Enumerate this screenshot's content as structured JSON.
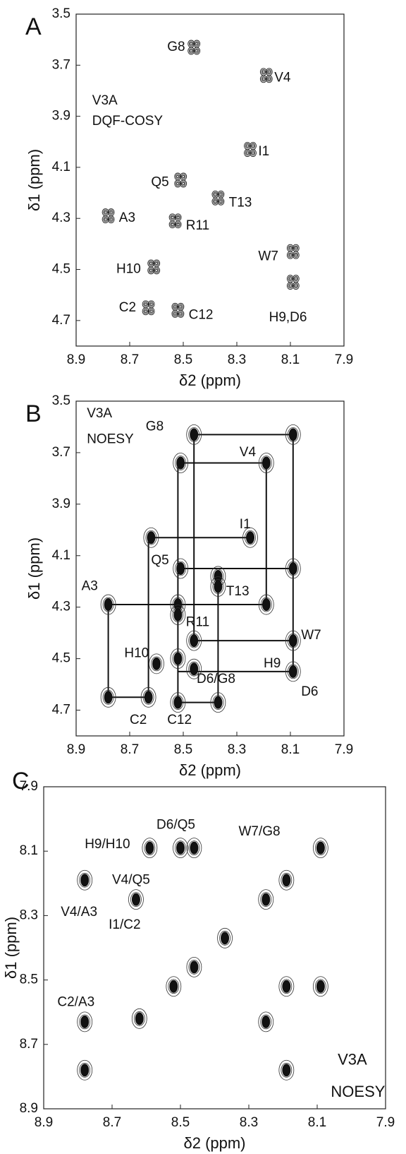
{
  "chart_data": [
    {
      "type": "scatter",
      "panel": "A",
      "xlabel": "δ2 (ppm)",
      "ylabel": "δ1 (ppm)",
      "xlim": [
        8.9,
        7.9
      ],
      "ylim": [
        3.5,
        4.8
      ],
      "xticks": [
        8.9,
        8.7,
        8.5,
        8.3,
        8.1,
        7.9
      ],
      "yticks": [
        3.5,
        3.7,
        3.9,
        4.1,
        4.3,
        4.5,
        4.7
      ],
      "x": [
        8.46,
        8.19,
        8.25,
        8.51,
        8.37,
        8.78,
        8.53,
        8.09,
        8.61,
        8.09,
        8.63,
        8.52
      ],
      "y": [
        3.63,
        3.74,
        4.03,
        4.15,
        4.22,
        4.29,
        4.31,
        4.43,
        4.49,
        4.55,
        4.65,
        4.66
      ],
      "annotations": [
        {
          "text": "V3A",
          "x": 8.84,
          "y": 3.84
        },
        {
          "text": "DQF-COSY",
          "x": 8.84,
          "y": 3.92
        },
        {
          "text": "G8",
          "x": 8.56,
          "y": 3.63
        },
        {
          "text": "V4",
          "x": 8.16,
          "y": 3.75
        },
        {
          "text": "I1",
          "x": 8.22,
          "y": 4.04
        },
        {
          "text": "Q5",
          "x": 8.62,
          "y": 4.16
        },
        {
          "text": "T13",
          "x": 8.33,
          "y": 4.24
        },
        {
          "text": "A3",
          "x": 8.74,
          "y": 4.3
        },
        {
          "text": "R11",
          "x": 8.49,
          "y": 4.33
        },
        {
          "text": "W7",
          "x": 8.22,
          "y": 4.45
        },
        {
          "text": "H10",
          "x": 8.75,
          "y": 4.5
        },
        {
          "text": "H9,D6",
          "x": 8.18,
          "y": 4.69
        },
        {
          "text": "C2",
          "x": 8.74,
          "y": 4.65
        },
        {
          "text": "C12",
          "x": 8.48,
          "y": 4.68
        }
      ]
    },
    {
      "type": "scatter",
      "panel": "B",
      "xlabel": "δ2 (ppm)",
      "ylabel": "δ1 (ppm)",
      "xlim": [
        8.9,
        7.9
      ],
      "ylim": [
        3.5,
        4.8
      ],
      "xticks": [
        8.9,
        8.7,
        8.5,
        8.3,
        8.1,
        7.9
      ],
      "yticks": [
        3.5,
        3.7,
        3.9,
        4.1,
        4.3,
        4.5,
        4.7
      ],
      "x": [
        8.46,
        8.09,
        8.51,
        8.19,
        8.62,
        8.25,
        8.51,
        8.09,
        8.37,
        8.37,
        8.78,
        8.52,
        8.19,
        8.52,
        8.46,
        8.09,
        8.6,
        8.52,
        8.46,
        8.09,
        8.78,
        8.63,
        8.52,
        8.37
      ],
      "y": [
        3.63,
        3.63,
        3.74,
        3.74,
        4.03,
        4.03,
        4.15,
        4.15,
        4.18,
        4.22,
        4.29,
        4.29,
        4.29,
        4.33,
        4.43,
        4.43,
        4.52,
        4.5,
        4.54,
        4.55,
        4.65,
        4.65,
        4.67,
        4.67
      ],
      "segments": [
        [
          8.46,
          3.63,
          8.09,
          3.63
        ],
        [
          8.51,
          3.74,
          8.19,
          3.74
        ],
        [
          8.62,
          4.03,
          8.25,
          4.03
        ],
        [
          8.51,
          4.15,
          8.09,
          4.15
        ],
        [
          8.78,
          4.29,
          8.19,
          4.29
        ],
        [
          8.46,
          4.43,
          8.09,
          4.43
        ],
        [
          8.52,
          4.55,
          8.09,
          4.55
        ],
        [
          8.78,
          4.65,
          8.63,
          4.65
        ],
        [
          8.52,
          4.67,
          8.37,
          4.67
        ],
        [
          8.78,
          4.29,
          8.78,
          4.65
        ],
        [
          8.63,
          4.03,
          8.63,
          4.65
        ],
        [
          8.52,
          3.74,
          8.52,
          4.67
        ],
        [
          8.46,
          3.63,
          8.46,
          4.43
        ],
        [
          8.37,
          4.22,
          8.37,
          4.67
        ],
        [
          8.19,
          3.74,
          8.19,
          4.29
        ],
        [
          8.09,
          3.63,
          8.09,
          4.55
        ]
      ],
      "annotations": [
        {
          "text": "V3A",
          "x": 8.86,
          "y": 3.55
        },
        {
          "text": "NOESY",
          "x": 8.86,
          "y": 3.65
        },
        {
          "text": "G8",
          "x": 8.64,
          "y": 3.6
        },
        {
          "text": "V4",
          "x": 8.29,
          "y": 3.7
        },
        {
          "text": "I1",
          "x": 8.29,
          "y": 3.98
        },
        {
          "text": "Q5",
          "x": 8.62,
          "y": 4.12
        },
        {
          "text": "T13",
          "x": 8.34,
          "y": 4.24
        },
        {
          "text": "A3",
          "x": 8.88,
          "y": 4.22
        },
        {
          "text": "R11",
          "x": 8.49,
          "y": 4.36
        },
        {
          "text": "W7",
          "x": 8.06,
          "y": 4.41
        },
        {
          "text": "H10",
          "x": 8.72,
          "y": 4.48
        },
        {
          "text": "H9",
          "x": 8.2,
          "y": 4.52
        },
        {
          "text": "D6",
          "x": 8.06,
          "y": 4.63
        },
        {
          "text": "D6/G8",
          "x": 8.45,
          "y": 4.58
        },
        {
          "text": "C2",
          "x": 8.7,
          "y": 4.74
        },
        {
          "text": "C12",
          "x": 8.56,
          "y": 4.74
        }
      ]
    },
    {
      "type": "scatter",
      "panel": "C",
      "xlabel": "δ2 (ppm)",
      "ylabel": "δ1 (ppm)",
      "xlim": [
        8.9,
        7.9
      ],
      "ylim": [
        7.9,
        8.9
      ],
      "xticks": [
        8.9,
        8.7,
        8.5,
        8.3,
        8.1,
        7.9
      ],
      "yticks": [
        7.9,
        8.1,
        8.3,
        8.5,
        8.7,
        8.9
      ],
      "x": [
        8.78,
        8.62,
        8.52,
        8.46,
        8.37,
        8.25,
        8.19,
        8.09,
        8.78,
        8.63,
        8.59,
        8.5,
        8.46,
        8.78,
        8.09,
        8.19,
        8.25,
        8.19
      ],
      "y": [
        8.78,
        8.62,
        8.52,
        8.46,
        8.37,
        8.25,
        8.19,
        8.09,
        8.19,
        8.25,
        8.09,
        8.09,
        8.09,
        8.63,
        8.52,
        8.52,
        8.63,
        8.78
      ],
      "annotations": [
        {
          "text": "D6/Q5",
          "x": 8.57,
          "y": 8.02
        },
        {
          "text": "W7/G8",
          "x": 8.33,
          "y": 8.04
        },
        {
          "text": "H9/H10",
          "x": 8.78,
          "y": 8.08
        },
        {
          "text": "V4/Q5",
          "x": 8.7,
          "y": 8.19
        },
        {
          "text": "V4/A3",
          "x": 8.85,
          "y": 8.29
        },
        {
          "text": "I1/C2",
          "x": 8.71,
          "y": 8.33
        },
        {
          "text": "C2/A3",
          "x": 8.86,
          "y": 8.57
        },
        {
          "text": "V3A",
          "x": 8.04,
          "y": 8.75
        },
        {
          "text": "NOESY",
          "x": 8.06,
          "y": 8.85
        }
      ]
    }
  ]
}
